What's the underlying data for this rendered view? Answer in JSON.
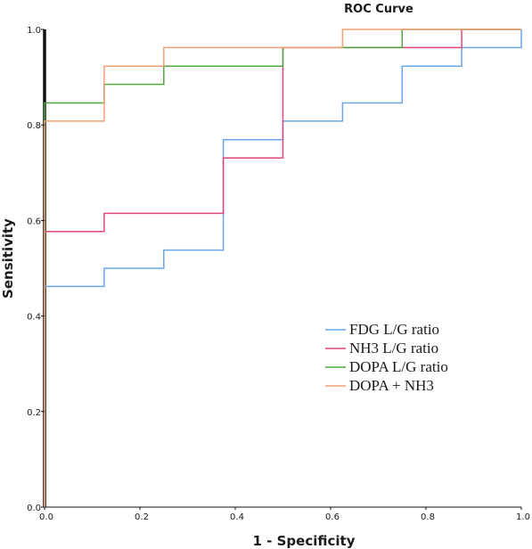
{
  "chart_data": {
    "type": "line",
    "title": "ROC Curve",
    "xlabel": "1 - Specificity",
    "ylabel": "Sensitivity",
    "xlim": [
      0,
      1
    ],
    "ylim": [
      0,
      1
    ],
    "xticks": [
      0.0,
      0.2,
      0.4,
      0.6,
      0.8,
      1.0
    ],
    "yticks": [
      0.0,
      0.2,
      0.4,
      0.6,
      0.8,
      1.0
    ],
    "xtick_labels": [
      "0.0",
      "0.2",
      "0.4",
      "0.6",
      "0.8",
      "1.0"
    ],
    "ytick_labels": [
      "0.0",
      "0.2",
      "0.4",
      "0.6",
      "0.8",
      "1.0"
    ],
    "grid": false,
    "legend_position": "bottom-right",
    "series": [
      {
        "name": "FDG L/G ratio",
        "color": "#6aa6e8",
        "points": [
          [
            0,
            0
          ],
          [
            0,
            0.462
          ],
          [
            0.125,
            0.462
          ],
          [
            0.125,
            0.5
          ],
          [
            0.25,
            0.5
          ],
          [
            0.25,
            0.538
          ],
          [
            0.375,
            0.538
          ],
          [
            0.375,
            0.769
          ],
          [
            0.5,
            0.769
          ],
          [
            0.5,
            0.808
          ],
          [
            0.625,
            0.808
          ],
          [
            0.625,
            0.846
          ],
          [
            0.75,
            0.846
          ],
          [
            0.75,
            0.923
          ],
          [
            0.875,
            0.923
          ],
          [
            0.875,
            0.962
          ],
          [
            1,
            0.962
          ],
          [
            1,
            1
          ]
        ]
      },
      {
        "name": "NH3 L/G ratio",
        "color": "#e0457b",
        "points": [
          [
            0,
            0
          ],
          [
            0,
            0.577
          ],
          [
            0.125,
            0.577
          ],
          [
            0.125,
            0.615
          ],
          [
            0.375,
            0.615
          ],
          [
            0.375,
            0.731
          ],
          [
            0.5,
            0.731
          ],
          [
            0.5,
            0.962
          ],
          [
            0.875,
            0.962
          ],
          [
            0.875,
            1
          ],
          [
            1,
            1
          ]
        ]
      },
      {
        "name": "DOPA L/G ratio",
        "color": "#4fa83f",
        "points": [
          [
            0,
            0
          ],
          [
            0,
            0.846
          ],
          [
            0.125,
            0.846
          ],
          [
            0.125,
            0.885
          ],
          [
            0.25,
            0.885
          ],
          [
            0.25,
            0.923
          ],
          [
            0.5,
            0.923
          ],
          [
            0.5,
            0.962
          ],
          [
            0.75,
            0.962
          ],
          [
            0.75,
            1
          ],
          [
            1,
            1
          ]
        ]
      },
      {
        "name": "DOPA + NH3",
        "color": "#f2a074",
        "points": [
          [
            0,
            0
          ],
          [
            0,
            0.808
          ],
          [
            0.125,
            0.808
          ],
          [
            0.125,
            0.923
          ],
          [
            0.25,
            0.923
          ],
          [
            0.25,
            0.962
          ],
          [
            0.625,
            0.962
          ],
          [
            0.625,
            1
          ],
          [
            1,
            1
          ]
        ]
      }
    ]
  }
}
